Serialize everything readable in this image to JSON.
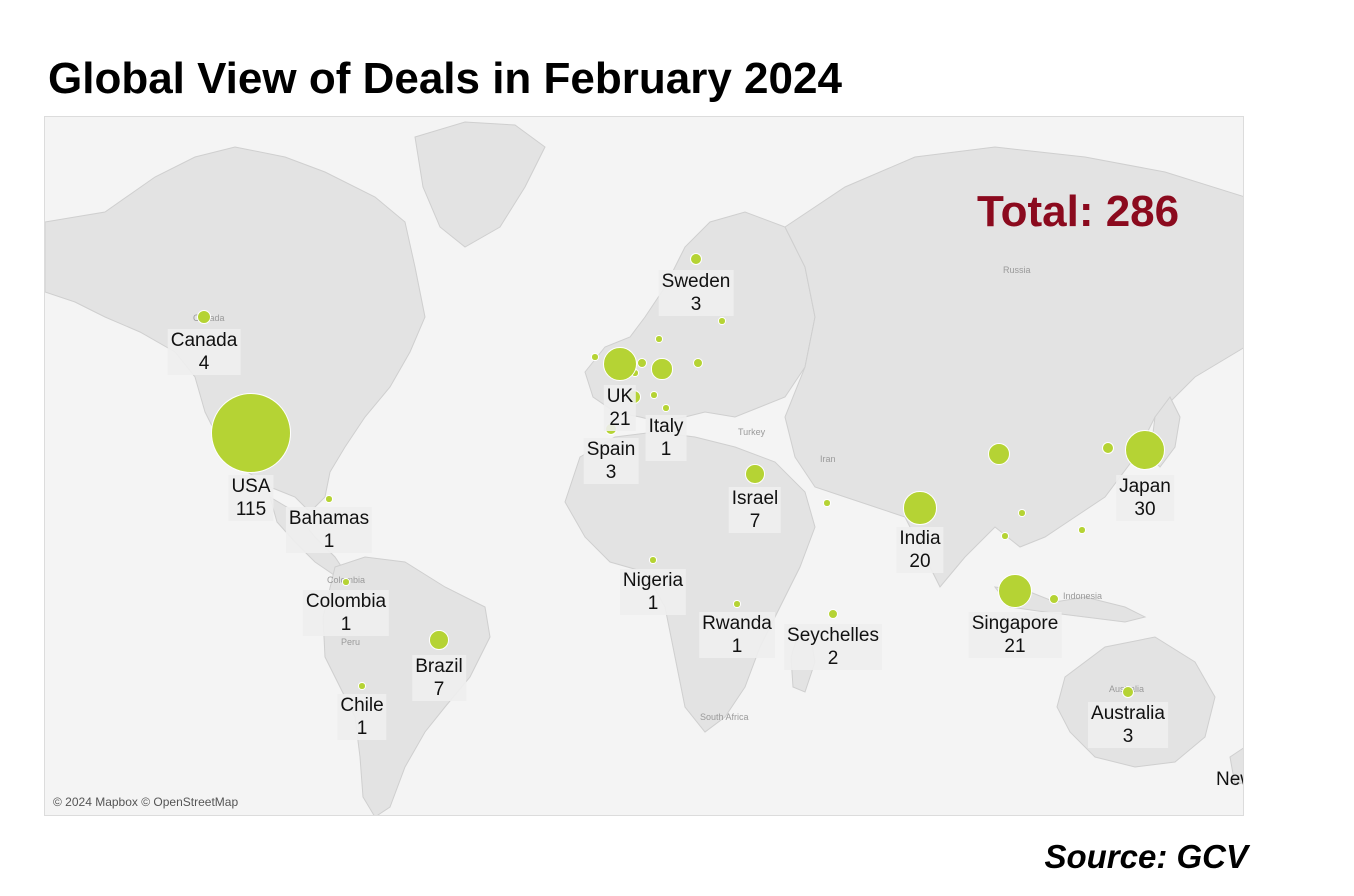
{
  "title": "Global View of Deals in February 2024",
  "total": "Total: 286",
  "attribution": "© 2024 Mapbox © OpenStreetMap",
  "source": "Source: GCV",
  "offmap_label": "New",
  "map_labels": [
    "Russia",
    "Turkey",
    "Iran",
    "South Africa",
    "Peru",
    "Canada",
    "Colombia",
    "Australia",
    "Indonesia"
  ],
  "colors": {
    "bubble": "#b5d334",
    "total": "#8b0a1e",
    "land": "#e3e3e3",
    "water": "#f4f4f4"
  },
  "countries": [
    {
      "id": "usa",
      "name": "USA",
      "value": "115",
      "deals": 115
    },
    {
      "id": "canada",
      "name": "Canada",
      "value": "4",
      "deals": 4
    },
    {
      "id": "bahamas",
      "name": "Bahamas",
      "value": "1",
      "deals": 1
    },
    {
      "id": "colombia",
      "name": "Colombia",
      "value": "1",
      "deals": 1
    },
    {
      "id": "brazil",
      "name": "Brazil",
      "value": "7",
      "deals": 7
    },
    {
      "id": "chile",
      "name": "Chile",
      "value": "1",
      "deals": 1
    },
    {
      "id": "uk",
      "name": "UK",
      "value": "21",
      "deals": 21
    },
    {
      "id": "sweden",
      "name": "Sweden",
      "value": "3",
      "deals": 3
    },
    {
      "id": "spain",
      "name": "Spain",
      "value": "3",
      "deals": 3
    },
    {
      "id": "italy",
      "name": "Italy",
      "value": "1",
      "deals": 1
    },
    {
      "id": "israel",
      "name": "Israel",
      "value": "7",
      "deals": 7
    },
    {
      "id": "nigeria",
      "name": "Nigeria",
      "value": "1",
      "deals": 1
    },
    {
      "id": "rwanda",
      "name": "Rwanda",
      "value": "1",
      "deals": 1
    },
    {
      "id": "seychelles",
      "name": "Seychelles",
      "value": "2",
      "deals": 2
    },
    {
      "id": "india",
      "name": "India",
      "value": "20",
      "deals": 20
    },
    {
      "id": "singapore",
      "name": "Singapore",
      "value": "21",
      "deals": 21
    },
    {
      "id": "japan",
      "name": "Japan",
      "value": "30",
      "deals": 30
    },
    {
      "id": "australia",
      "name": "Australia",
      "value": "3",
      "deals": 3
    }
  ],
  "unlabeled_bubbles": [
    {
      "id": "germany",
      "deals": 8
    },
    {
      "id": "china",
      "deals": 9
    },
    {
      "id": "france",
      "deals": 4
    },
    {
      "id": "south-korea",
      "deals": 3
    },
    {
      "id": "netherlands",
      "deals": 2
    },
    {
      "id": "poland",
      "deals": 2
    },
    {
      "id": "indonesia",
      "deals": 2
    },
    {
      "id": "ireland",
      "deals": 1
    },
    {
      "id": "denmark",
      "deals": 1
    },
    {
      "id": "estonia",
      "deals": 1
    },
    {
      "id": "switzerland",
      "deals": 1
    },
    {
      "id": "uae",
      "deals": 1
    },
    {
      "id": "vietnam",
      "deals": 1
    },
    {
      "id": "thailand",
      "deals": 1
    },
    {
      "id": "philippines",
      "deals": 1
    },
    {
      "id": "belgium",
      "deals": 1
    }
  ]
}
